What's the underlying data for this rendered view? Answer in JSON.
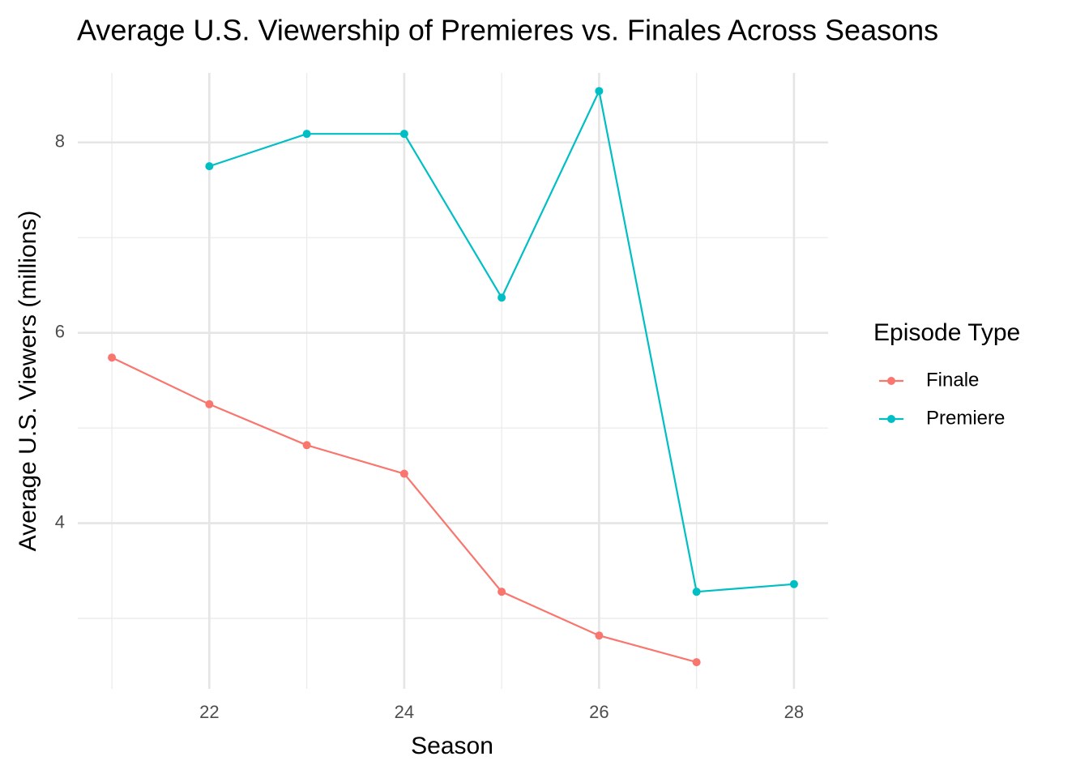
{
  "chart_data": {
    "type": "line",
    "title": "Average U.S. Viewership of Premieres vs. Finales Across Seasons",
    "x_label": "Season",
    "y_label": "Average U.S. Viewers (millions)",
    "x": [
      21,
      22,
      23,
      24,
      25,
      26,
      27,
      28
    ],
    "series": [
      {
        "name": "Finale",
        "color": "#F8766D",
        "values": [
          5.74,
          5.25,
          4.82,
          4.52,
          3.28,
          2.82,
          2.54,
          null
        ]
      },
      {
        "name": "Premiere",
        "color": "#00BFC4",
        "values": [
          null,
          7.75,
          8.09,
          8.09,
          6.37,
          8.54,
          3.28,
          3.36
        ]
      }
    ],
    "xlim": [
      20.65,
      28.35
    ],
    "ylim": [
      2.26,
      8.73
    ],
    "xticks": [
      22,
      24,
      26,
      28
    ],
    "yticks": [
      4,
      6,
      8
    ],
    "minor_xticks": [
      21,
      23,
      25,
      27
    ],
    "minor_yticks": [
      3,
      5,
      7
    ],
    "grid": true,
    "legend_title": "Episode Type",
    "legend_position": "right"
  }
}
